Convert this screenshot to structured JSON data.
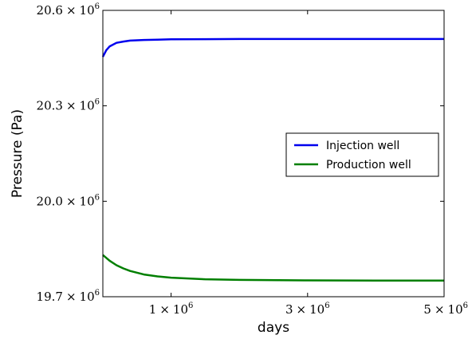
{
  "chart_data": {
    "type": "line",
    "title": "",
    "xlabel": "days",
    "ylabel": "Pressure (Pa)",
    "xlim": [
      0,
      5000000
    ],
    "ylim": [
      19700000,
      20600000
    ],
    "x_ticks": [
      {
        "value": 1000000,
        "mantissa": "1",
        "times": "×",
        "base": "10",
        "exp": "6"
      },
      {
        "value": 3000000,
        "mantissa": "3",
        "times": "×",
        "base": "10",
        "exp": "6"
      },
      {
        "value": 5000000,
        "mantissa": "5",
        "times": "×",
        "base": "10",
        "exp": "6"
      }
    ],
    "y_ticks": [
      {
        "value": 19700000,
        "mantissa": "19.7",
        "times": "×",
        "base": "10",
        "exp": "6"
      },
      {
        "value": 20000000,
        "mantissa": "20.0",
        "times": "×",
        "base": "10",
        "exp": "6"
      },
      {
        "value": 20300000,
        "mantissa": "20.3",
        "times": "×",
        "base": "10",
        "exp": "6"
      },
      {
        "value": 20600000,
        "mantissa": "20.6",
        "times": "×",
        "base": "10",
        "exp": "6"
      }
    ],
    "legend_position": "right",
    "series": [
      {
        "name": "Injection well",
        "color": "#0000ee",
        "x": [
          0,
          50000,
          100000,
          200000,
          300000,
          400000,
          600000,
          800000,
          1000000,
          1500000,
          2000000,
          3000000,
          4000000,
          5000000
        ],
        "y": [
          20454000,
          20475000,
          20487000,
          20498000,
          20502000,
          20505000,
          20507000,
          20508000,
          20509000,
          20509500,
          20510000,
          20510000,
          20510000,
          20510000
        ]
      },
      {
        "name": "Production well",
        "color": "#007f00",
        "x": [
          0,
          100000,
          200000,
          300000,
          400000,
          600000,
          800000,
          1000000,
          1500000,
          2000000,
          3000000,
          4000000,
          5000000
        ],
        "y": [
          19831000,
          19813000,
          19799000,
          19789000,
          19781000,
          19770000,
          19764000,
          19760000,
          19755000,
          19753000,
          19751500,
          19751000,
          19751000
        ]
      }
    ]
  }
}
